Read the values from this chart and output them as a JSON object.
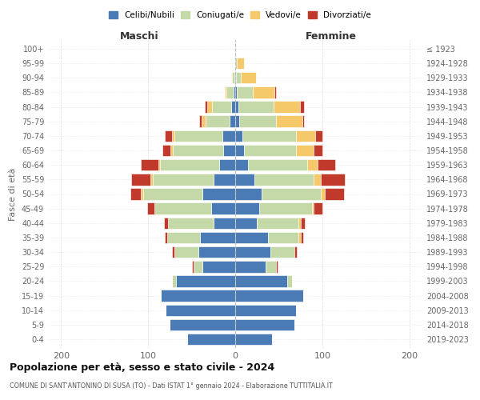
{
  "age_groups": [
    "0-4",
    "5-9",
    "10-14",
    "15-19",
    "20-24",
    "25-29",
    "30-34",
    "35-39",
    "40-44",
    "45-49",
    "50-54",
    "55-59",
    "60-64",
    "65-69",
    "70-74",
    "75-79",
    "80-84",
    "85-89",
    "90-94",
    "95-99",
    "100+"
  ],
  "birth_years": [
    "2019-2023",
    "2014-2018",
    "2009-2013",
    "2004-2008",
    "1999-2003",
    "1994-1998",
    "1989-1993",
    "1984-1988",
    "1979-1983",
    "1974-1978",
    "1969-1973",
    "1964-1968",
    "1959-1963",
    "1954-1958",
    "1949-1953",
    "1944-1948",
    "1939-1943",
    "1934-1938",
    "1929-1933",
    "1924-1928",
    "≤ 1923"
  ],
  "maschi": {
    "celibi": [
      55,
      75,
      80,
      85,
      68,
      38,
      42,
      40,
      25,
      28,
      38,
      25,
      18,
      14,
      15,
      6,
      5,
      2,
      1,
      0,
      0
    ],
    "coniugati": [
      0,
      0,
      0,
      0,
      5,
      10,
      28,
      38,
      52,
      65,
      68,
      70,
      68,
      58,
      55,
      28,
      22,
      8,
      3,
      0,
      0
    ],
    "vedovi": [
      0,
      0,
      0,
      0,
      0,
      0,
      0,
      0,
      0,
      0,
      2,
      2,
      2,
      2,
      3,
      5,
      5,
      2,
      1,
      0,
      0
    ],
    "divorziati": [
      0,
      0,
      0,
      0,
      0,
      2,
      3,
      3,
      5,
      8,
      12,
      22,
      20,
      10,
      8,
      2,
      3,
      0,
      0,
      0,
      0
    ]
  },
  "femmine": {
    "nubili": [
      42,
      68,
      70,
      78,
      60,
      35,
      40,
      38,
      25,
      28,
      30,
      22,
      15,
      10,
      8,
      5,
      4,
      2,
      1,
      0,
      0
    ],
    "coniugate": [
      0,
      0,
      0,
      0,
      5,
      12,
      28,
      35,
      48,
      60,
      68,
      68,
      68,
      60,
      62,
      42,
      40,
      18,
      5,
      2,
      0
    ],
    "vedove": [
      0,
      0,
      0,
      0,
      0,
      0,
      0,
      2,
      2,
      2,
      5,
      8,
      12,
      20,
      22,
      30,
      30,
      25,
      18,
      8,
      1
    ],
    "divorziate": [
      0,
      0,
      0,
      0,
      0,
      2,
      3,
      3,
      5,
      10,
      22,
      28,
      20,
      10,
      8,
      2,
      5,
      2,
      0,
      0,
      0
    ]
  },
  "colors": {
    "celibi": "#4A7BB5",
    "coniugati": "#C5D9A8",
    "vedovi": "#F5C96A",
    "divorziati": "#C0392B"
  },
  "xlim": [
    -215,
    215
  ],
  "xticks": [
    -200,
    -100,
    0,
    100,
    200
  ],
  "xticklabels": [
    "200",
    "100",
    "0",
    "100",
    "200"
  ],
  "title": "Popolazione per età, sesso e stato civile - 2024",
  "subtitle": "COMUNE DI SANT'ANTONINO DI SUSA (TO) - Dati ISTAT 1° gennaio 2024 - Elaborazione TUTTITALIA.IT",
  "ylabel_left": "Fasce di età",
  "maschi_label": "Maschi",
  "femmine_label": "Femmine",
  "legend_labels": [
    "Celibi/Nubili",
    "Coniugati/e",
    "Vedovi/e",
    "Divorziati/e"
  ],
  "bg_color": "#FFFFFF",
  "grid_color": "#CCCCCC"
}
